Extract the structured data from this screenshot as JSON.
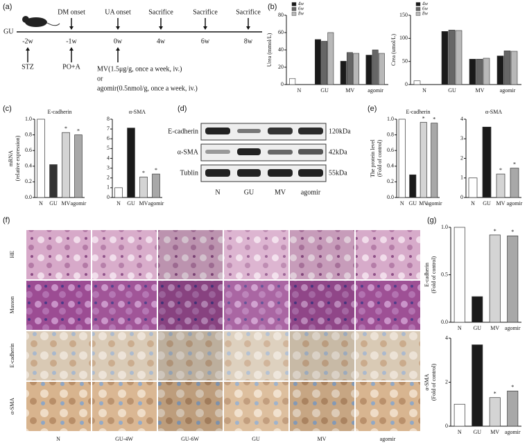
{
  "panel_labels": [
    "(a)",
    "(b)",
    "(c)",
    "(d)",
    "(e)",
    "(f)",
    "(g)"
  ],
  "timeline": {
    "label": "GU",
    "events": [
      {
        "time": "-2w",
        "below": "STZ"
      },
      {
        "time": "-1w",
        "above": "DM onset",
        "below": "PO+A"
      },
      {
        "time": "0w",
        "above": "UA onset"
      },
      {
        "time": "4w",
        "above": "Sacrifice"
      },
      {
        "time": "6w",
        "above": "Sacrifice"
      },
      {
        "time": "8w",
        "above": "Sacrifice"
      }
    ],
    "treatment": [
      "MV(1.5μg/g, once a week, iv.)",
      "or",
      "agomir(0.5nmol/g, once a week, iv.)"
    ]
  },
  "chart_data": [
    {
      "type": "bar",
      "ylabel": [
        "Urea (mmol/L)"
      ],
      "categories": [
        "N",
        "GU",
        "MV",
        "agomir"
      ],
      "series": [
        {
          "name": "4w",
          "color": "#1a1a1a",
          "values": [
            7,
            52,
            27,
            34
          ]
        },
        {
          "name": "6w",
          "color": "#666666",
          "values": [
            null,
            50,
            37,
            40
          ]
        },
        {
          "name": "8w",
          "color": "#b8b8b8",
          "values": [
            null,
            60,
            36,
            36
          ]
        }
      ],
      "control_category": "N",
      "control_color": "#ffffff",
      "legend": "top-left",
      "ylim": [
        0,
        80
      ],
      "yticks": [
        0,
        20,
        40,
        60,
        80
      ]
    },
    {
      "type": "bar",
      "ylabel": [
        "Crea (umol/L)"
      ],
      "categories": [
        "N",
        "GU",
        "MV",
        "agomir"
      ],
      "series": [
        {
          "name": "4w",
          "color": "#1a1a1a",
          "values": [
            8,
            115,
            55,
            62
          ]
        },
        {
          "name": "6w",
          "color": "#666666",
          "values": [
            null,
            118,
            55,
            73
          ]
        },
        {
          "name": "8w",
          "color": "#b8b8b8",
          "values": [
            null,
            117,
            57,
            72
          ]
        }
      ],
      "control_category": "N",
      "control_color": "#ffffff",
      "legend": "top-left",
      "ylim": [
        0,
        150
      ],
      "yticks": [
        0,
        50,
        100,
        150
      ]
    },
    {
      "type": "bar",
      "title": "E-cadherin",
      "ylabel": [
        "mRNA",
        "(relative expression)"
      ],
      "categories": [
        "N",
        "GU",
        "MV",
        "agomir"
      ],
      "values": [
        1.0,
        0.42,
        0.83,
        0.8
      ],
      "colors": [
        "#ffffff",
        "#333333",
        "#d4d4d4",
        "#a8a8a8"
      ],
      "annotations": [
        {
          "category": "MV",
          "text": "*"
        },
        {
          "category": "agomir",
          "text": "*"
        }
      ],
      "ylim": [
        0,
        1.0
      ],
      "yticks": [
        {
          "value": 0,
          "label": "0.0"
        },
        0.2,
        0.4,
        0.6,
        0.8,
        {
          "value": 1,
          "label": "1.0"
        }
      ]
    },
    {
      "type": "bar",
      "title": "α-SMA",
      "categories": [
        "N",
        "GU",
        "MV",
        "agomir"
      ],
      "values": [
        1.0,
        7.1,
        2.1,
        2.4
      ],
      "colors": [
        "#ffffff",
        "#1a1a1a",
        "#d4d4d4",
        "#a8a8a8"
      ],
      "annotations": [
        {
          "category": "MV",
          "text": "*"
        },
        {
          "category": "agomir",
          "text": "*"
        }
      ],
      "ylim": [
        0,
        8
      ],
      "yticks": [
        0,
        1,
        2,
        3,
        4,
        5,
        6,
        7,
        8
      ]
    },
    {
      "type": "bar",
      "title": "E-cadherin",
      "ylabel": [
        "The protein level",
        "(Fold of control)"
      ],
      "categories": [
        "N",
        "GU",
        "MV",
        "agomir"
      ],
      "values": [
        1.0,
        0.29,
        0.96,
        0.95
      ],
      "colors": [
        "#ffffff",
        "#1a1a1a",
        "#d4d4d4",
        "#a8a8a8"
      ],
      "annotations": [
        {
          "category": "MV",
          "text": "*"
        },
        {
          "category": "agomir",
          "text": "*"
        }
      ],
      "ylim": [
        0,
        1.0
      ],
      "yticks": [
        {
          "value": 0,
          "label": "0.0"
        },
        0.2,
        0.4,
        0.6,
        0.8,
        {
          "value": 1,
          "label": "1.0"
        }
      ]
    },
    {
      "type": "bar",
      "title": "α-SMA",
      "categories": [
        "N",
        "GU",
        "MV",
        "agomir"
      ],
      "values": [
        1.0,
        3.6,
        1.2,
        1.5
      ],
      "colors": [
        "#ffffff",
        "#1a1a1a",
        "#d4d4d4",
        "#a8a8a8"
      ],
      "annotations": [
        {
          "category": "MV",
          "text": "*"
        },
        {
          "category": "agomir",
          "text": "*"
        }
      ],
      "ylim": [
        0,
        4
      ],
      "yticks": [
        0,
        1,
        2,
        3,
        4
      ]
    },
    {
      "type": "bar",
      "ylabel": [
        "E-cadherin",
        "(Fold of control)"
      ],
      "categories": [
        "N",
        "GU",
        "MV",
        "agomir"
      ],
      "values": [
        1.0,
        0.27,
        0.92,
        0.91
      ],
      "colors": [
        "#ffffff",
        "#1a1a1a",
        "#d4d4d4",
        "#a8a8a8"
      ],
      "annotations": [
        {
          "category": "MV",
          "text": "*"
        },
        {
          "category": "agomir",
          "text": "*"
        }
      ],
      "ylim": [
        0,
        1.0
      ],
      "yticks": [
        {
          "value": 0,
          "label": "0.0"
        },
        0.5,
        {
          "value": 1,
          "label": "1.0"
        }
      ]
    },
    {
      "type": "bar",
      "ylabel": [
        "α-SMA",
        "(Fold of control)"
      ],
      "categories": [
        "N",
        "GU",
        "MV",
        "agomir"
      ],
      "values": [
        1.0,
        3.7,
        1.3,
        1.6
      ],
      "colors": [
        "#ffffff",
        "#1a1a1a",
        "#d4d4d4",
        "#a8a8a8"
      ],
      "annotations": [
        {
          "category": "MV",
          "text": "*"
        },
        {
          "category": "agomir",
          "text": "*"
        }
      ],
      "ylim": [
        0,
        4
      ],
      "yticks": [
        0,
        2,
        4
      ]
    }
  ],
  "blot": {
    "proteins": [
      "E-cadherin",
      "α-SMA",
      "Tublin"
    ],
    "sizes": [
      "120kDa",
      "42kDa",
      "55kDa"
    ],
    "lanes": [
      "N",
      "GU",
      "MV",
      "agomir"
    ]
  },
  "histology": {
    "rows": [
      "HE",
      "Masson",
      "E-cadherin",
      "α-SMA"
    ],
    "columns": [
      "N",
      "GU-4W",
      "GU-6W",
      "GU",
      "MV",
      "agomir"
    ]
  }
}
